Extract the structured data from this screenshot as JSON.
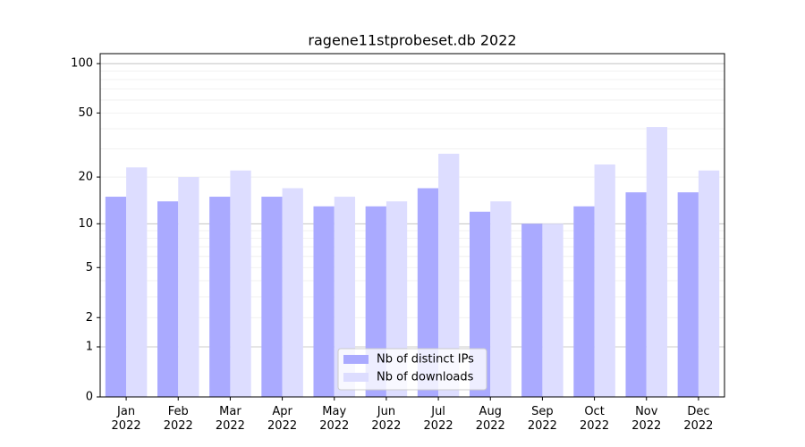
{
  "chart_data": {
    "type": "bar",
    "title": "ragene11stprobeset.db 2022",
    "categories": [
      "Jan 2022",
      "Feb 2022",
      "Mar 2022",
      "Apr 2022",
      "May 2022",
      "Jun 2022",
      "Jul 2022",
      "Aug 2022",
      "Sep 2022",
      "Oct 2022",
      "Nov 2022",
      "Dec 2022"
    ],
    "series": [
      {
        "name": "Nb of distinct IPs",
        "color": "#aaaaff",
        "values": [
          15,
          14,
          15,
          15,
          13,
          13,
          17,
          12,
          10,
          13,
          16,
          16
        ]
      },
      {
        "name": "Nb of downloads",
        "color": "#ddddff",
        "values": [
          23,
          20,
          22,
          17,
          15,
          14,
          28,
          14,
          10,
          24,
          41,
          22
        ]
      }
    ],
    "yscale": "log1p",
    "ylim": [
      0,
      115
    ],
    "yticks": [
      0,
      1,
      2,
      5,
      10,
      20,
      50,
      100
    ],
    "major_grid": [
      1,
      10,
      100
    ],
    "minor_grid": [
      2,
      3,
      4,
      5,
      6,
      7,
      8,
      9,
      20,
      30,
      40,
      50,
      60,
      70,
      80,
      90
    ],
    "grid": true,
    "legend": "lower center"
  }
}
